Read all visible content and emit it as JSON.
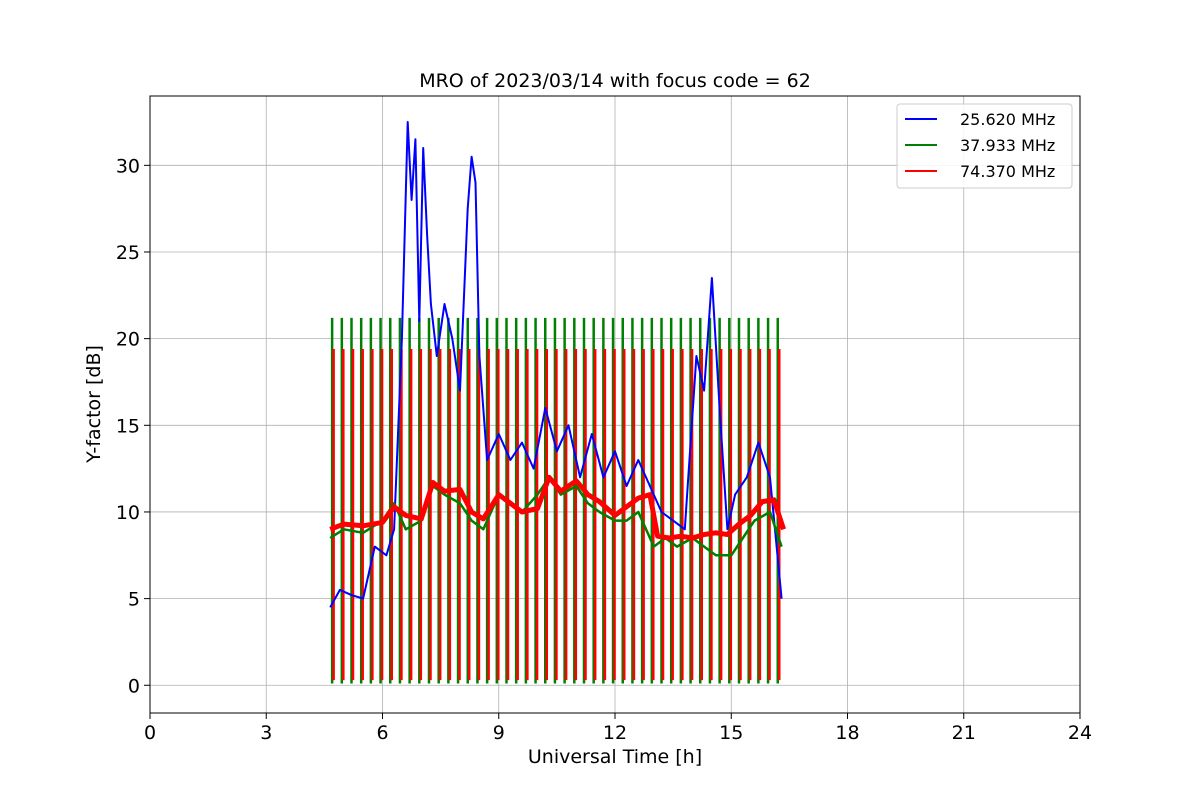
{
  "chart_data": {
    "type": "line",
    "title": "MRO of 2023/03/14 with focus code = 62",
    "xlabel": "Universal Time [h]",
    "ylabel": "Y-factor [dB]",
    "xlim": [
      0,
      24
    ],
    "ylim": [
      -1.6,
      34
    ],
    "xticks": [
      0,
      3,
      6,
      9,
      12,
      15,
      18,
      21,
      24
    ],
    "yticks": [
      0,
      5,
      10,
      15,
      20,
      25,
      30
    ],
    "grid": true,
    "legend_position": "top-right",
    "series": [
      {
        "name": "25.620 MHz",
        "color": "#0000ff",
        "x": [
          4.65,
          4.9,
          5.2,
          5.5,
          5.8,
          6.1,
          6.3,
          6.5,
          6.65,
          6.75,
          6.85,
          6.95,
          7.05,
          7.15,
          7.25,
          7.4,
          7.6,
          7.8,
          8.0,
          8.2,
          8.3,
          8.4,
          8.5,
          8.7,
          9.0,
          9.3,
          9.6,
          9.9,
          10.2,
          10.5,
          10.8,
          11.1,
          11.4,
          11.7,
          12.0,
          12.3,
          12.6,
          12.9,
          13.2,
          13.5,
          13.8,
          14.1,
          14.3,
          14.5,
          14.7,
          14.9,
          15.1,
          15.4,
          15.7,
          16.0,
          16.3
        ],
        "y": [
          4.5,
          5.5,
          5.2,
          5.0,
          8.0,
          7.5,
          9.0,
          20.0,
          32.5,
          28.0,
          31.5,
          21.0,
          31.0,
          26.0,
          22.0,
          19.0,
          22.0,
          20.0,
          17.0,
          27.5,
          30.5,
          29.0,
          19.0,
          13.0,
          14.5,
          13.0,
          14.0,
          12.5,
          16.0,
          13.5,
          15.0,
          12.0,
          14.5,
          12.0,
          13.5,
          11.5,
          13.0,
          11.5,
          10.0,
          9.5,
          9.0,
          19.0,
          17.0,
          23.5,
          16.0,
          9.0,
          11.0,
          12.0,
          14.0,
          12.0,
          5.0
        ]
      },
      {
        "name": "37.933 MHz",
        "color": "#008000",
        "x": [
          4.65,
          5.0,
          5.5,
          6.0,
          6.3,
          6.6,
          7.0,
          7.3,
          7.6,
          8.0,
          8.3,
          8.6,
          9.0,
          9.3,
          9.6,
          10.0,
          10.3,
          10.6,
          11.0,
          11.3,
          11.6,
          12.0,
          12.3,
          12.6,
          13.0,
          13.3,
          13.6,
          14.0,
          14.3,
          14.6,
          15.0,
          15.3,
          15.6,
          16.0,
          16.3
        ],
        "y": [
          8.5,
          9.0,
          8.8,
          9.5,
          10.5,
          9.0,
          9.5,
          11.5,
          11.0,
          10.5,
          9.5,
          9.0,
          11.0,
          10.5,
          10.0,
          11.0,
          12.0,
          11.0,
          11.5,
          10.5,
          10.0,
          9.5,
          9.5,
          10.0,
          8.0,
          8.5,
          8.0,
          8.5,
          8.0,
          7.5,
          7.5,
          8.5,
          9.5,
          10.0,
          8.0
        ]
      },
      {
        "name": "74.370 MHz",
        "color": "#ff0000",
        "x": [
          4.65,
          5.0,
          5.5,
          6.0,
          6.3,
          6.6,
          7.0,
          7.3,
          7.6,
          8.0,
          8.3,
          8.6,
          9.0,
          9.3,
          9.6,
          10.0,
          10.3,
          10.6,
          11.0,
          11.3,
          11.6,
          12.0,
          12.3,
          12.6,
          12.9,
          13.1,
          13.4,
          13.7,
          14.0,
          14.3,
          14.6,
          14.9,
          15.2,
          15.5,
          15.8,
          16.1,
          16.35
        ],
        "y": [
          9.0,
          9.3,
          9.2,
          9.4,
          10.3,
          9.8,
          9.6,
          11.7,
          11.2,
          11.3,
          10.0,
          9.6,
          11.0,
          10.5,
          10.0,
          10.2,
          12.0,
          11.2,
          11.8,
          11.0,
          10.6,
          9.8,
          10.3,
          10.8,
          11.0,
          8.6,
          8.5,
          8.6,
          8.5,
          8.7,
          8.8,
          8.7,
          9.3,
          9.8,
          10.6,
          10.7,
          9.0
        ]
      }
    ],
    "calibration_spikes": {
      "x": [
        4.7,
        4.95,
        5.2,
        5.45,
        5.7,
        5.95,
        6.2,
        6.45,
        6.7,
        6.95,
        7.2,
        7.45,
        7.7,
        7.95,
        8.2,
        8.45,
        8.7,
        8.95,
        9.2,
        9.45,
        9.7,
        9.95,
        10.2,
        10.45,
        10.7,
        10.95,
        11.2,
        11.45,
        11.7,
        11.95,
        12.2,
        12.45,
        12.7,
        12.95,
        13.2,
        13.45,
        13.7,
        13.95,
        14.2,
        14.45,
        14.7,
        14.95,
        15.2,
        15.45,
        15.7,
        15.95,
        16.2
      ],
      "green_top": 21.2,
      "red_top": 19.4,
      "bottom": 0.1
    }
  }
}
